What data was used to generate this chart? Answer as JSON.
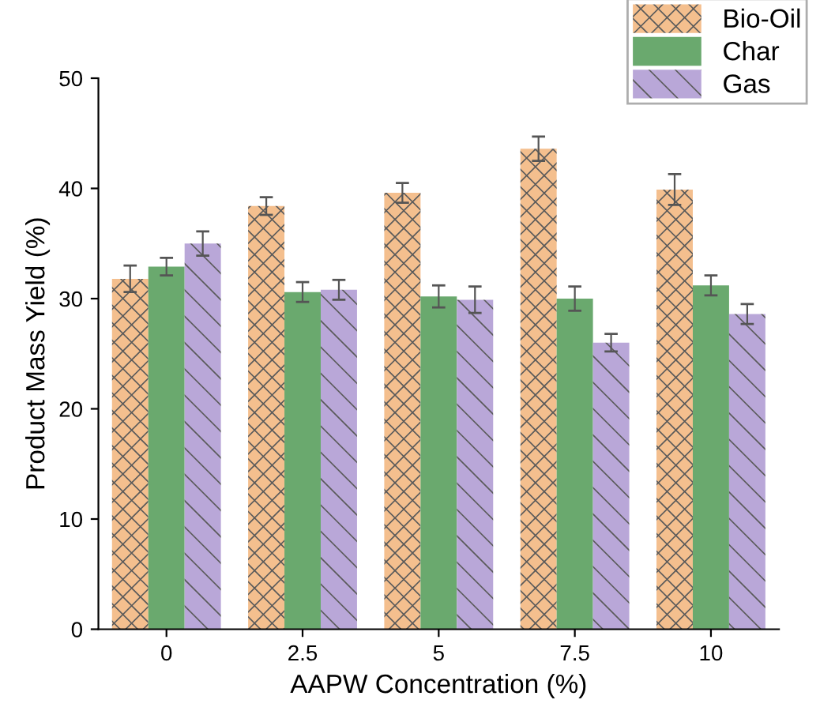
{
  "chart_data": {
    "type": "bar",
    "xlabel": "AAPW Concentration (%)",
    "ylabel": "Product Mass Yield (%)",
    "categories": [
      "0",
      "2.5",
      "5",
      "7.5",
      "10"
    ],
    "series": [
      {
        "name": "Bio-Oil",
        "color": "#f4bf8e",
        "values": [
          31.8,
          38.4,
          39.6,
          43.6,
          39.9
        ],
        "errors": [
          1.2,
          0.8,
          0.9,
          1.1,
          1.4
        ]
      },
      {
        "name": "Char",
        "color": "#6aa96e",
        "values": [
          32.9,
          30.6,
          30.2,
          30.0,
          31.2
        ],
        "errors": [
          0.8,
          0.9,
          1.0,
          1.1,
          0.9
        ]
      },
      {
        "name": "Gas",
        "color": "#b9a7d8",
        "values": [
          35.0,
          30.8,
          29.9,
          26.0,
          28.6
        ],
        "errors": [
          1.1,
          0.9,
          1.2,
          0.8,
          0.9
        ]
      }
    ],
    "ylim": [
      0,
      50
    ],
    "yticks": [
      0,
      10,
      20,
      30,
      40,
      50
    ],
    "grid": false,
    "legend": "top right"
  }
}
